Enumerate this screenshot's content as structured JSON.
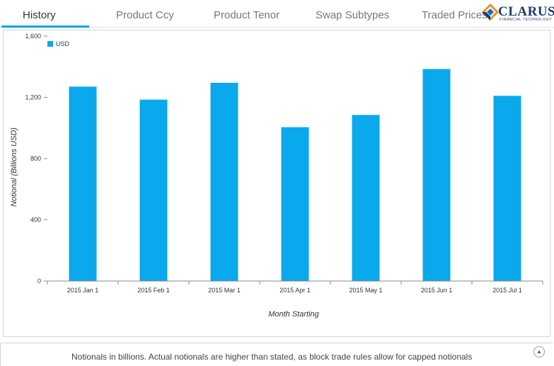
{
  "tabs": [
    {
      "label": "History",
      "active": true
    },
    {
      "label": "Product Ccy",
      "active": false
    },
    {
      "label": "Product Tenor",
      "active": false
    },
    {
      "label": "Swap Subtypes",
      "active": false
    },
    {
      "label": "Traded Prices",
      "active": false
    }
  ],
  "logo": {
    "name": "CLARUS",
    "subtitle": "FINANCIAL TECHNOLOGY"
  },
  "colors": {
    "bar": "#0aa8ec",
    "accent": "#00a3e8"
  },
  "chart_data": {
    "type": "bar",
    "categories": [
      "2015 Jan 1",
      "2015 Feb 1",
      "2015 Mar 1",
      "2015 Apr 1",
      "2015 May 1",
      "2015 Jun 1",
      "2015 Jul 1"
    ],
    "series": [
      {
        "name": "USD",
        "values": [
          1270,
          1185,
          1295,
          1005,
          1085,
          1385,
          1210
        ]
      }
    ],
    "title": "",
    "xlabel": "Month Starting",
    "ylabel": "Notional (Billions USD)",
    "ylim": [
      0,
      1600
    ],
    "yticks": [
      0,
      400,
      800,
      1200,
      1600
    ],
    "ytick_labels": [
      "0",
      "400",
      "800",
      "1,200",
      "1,600"
    ],
    "grid": false,
    "legend": "top-left"
  },
  "footer": {
    "note": "Notionals in billions. Actual notionals are higher than stated, as block trade rules allow for capped notionals"
  }
}
